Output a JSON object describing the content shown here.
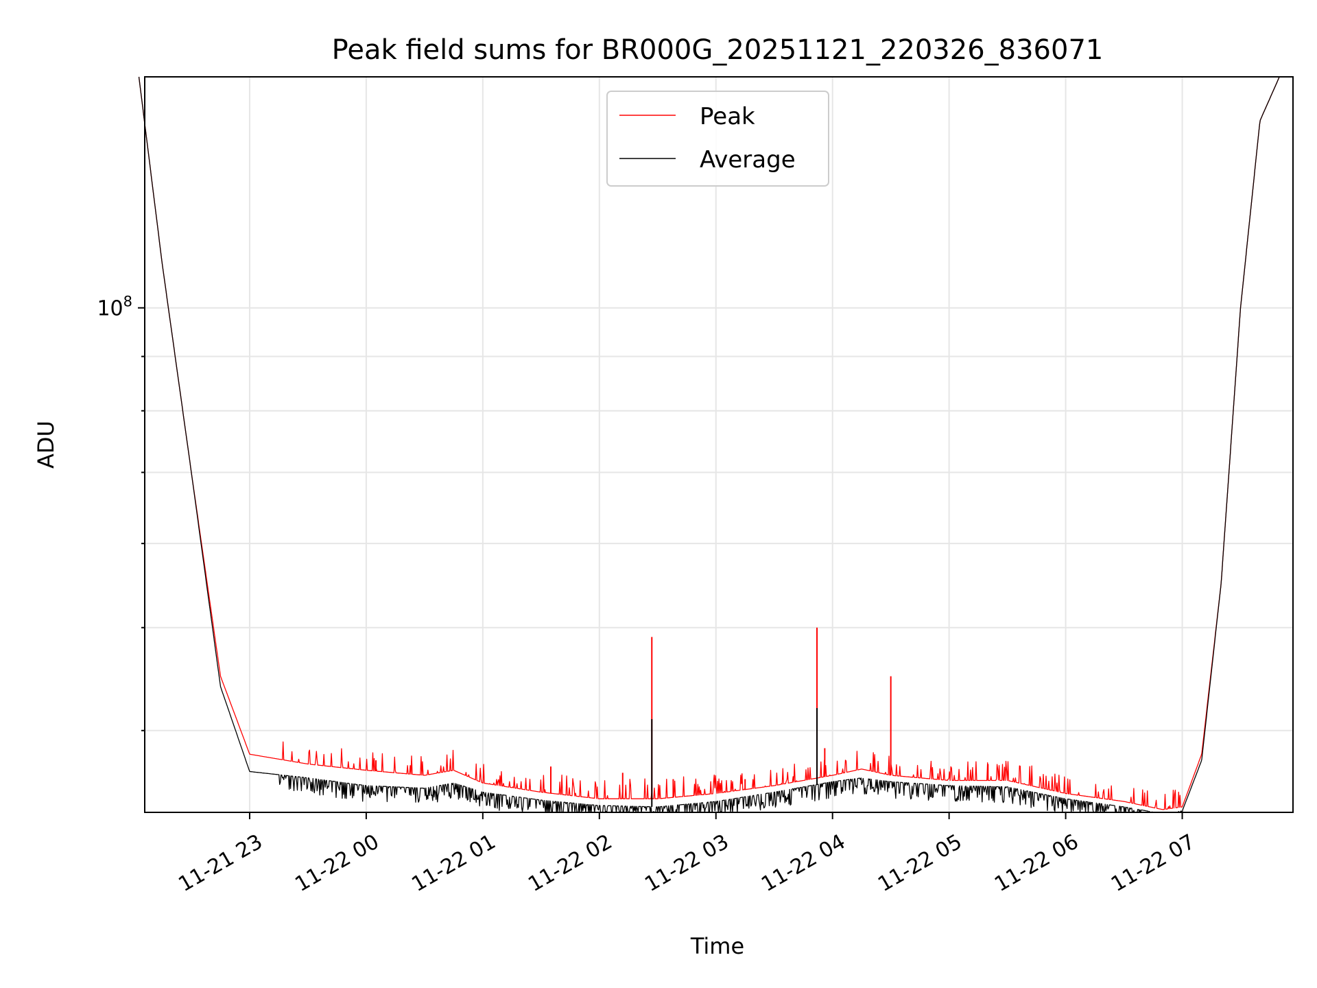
{
  "chart_data": {
    "type": "line",
    "title": "Peak field sums for BR000G_20251121_220326_836071",
    "xlabel": "Time",
    "ylabel": "ADU",
    "yscale": "log",
    "ylim": [
      33500000,
      165000000
    ],
    "xlim": [
      "2025-11-21 22:06",
      "2025-11-22 07:57"
    ],
    "grid": true,
    "legend_position": "upper center",
    "x_ticks": [
      "11-21 23",
      "11-22 00",
      "11-22 01",
      "11-22 02",
      "11-22 03",
      "11-22 04",
      "11-22 05",
      "11-22 06",
      "11-22 07"
    ],
    "y_tick_label": {
      "base": "10",
      "exponent": "8"
    },
    "series": [
      {
        "name": "Peak",
        "color": "#ff0000",
        "baseline_x": [
          "22:03",
          "22:15",
          "22:30",
          "22:45",
          "23:00",
          "23:30",
          "00:00",
          "00:30",
          "00:45",
          "01:00",
          "01:30",
          "02:00",
          "02:30",
          "03:00",
          "03:30",
          "04:00",
          "04:15",
          "04:30",
          "05:00",
          "05:30",
          "06:00",
          "06:30",
          "06:50",
          "07:00",
          "07:10",
          "07:20",
          "07:30",
          "07:40",
          "07:50",
          "07:57"
        ],
        "baseline_y": [
          165000000,
          110000000,
          70000000,
          45000000,
          38000000,
          37200000,
          36700000,
          36300000,
          36700000,
          35700000,
          35000000,
          34500000,
          34500000,
          34900000,
          35500000,
          36300000,
          36800000,
          36300000,
          35900000,
          35900000,
          34900000,
          34300000,
          33700000,
          33900000,
          38000000,
          55000000,
          100000000,
          150000000,
          165000000,
          165000000
        ],
        "spike_times": [
          "02:27",
          "03:52",
          "04:30",
          "03:56",
          "00:05",
          "01:35",
          "02:12",
          "02:38",
          "03:15",
          "05:20"
        ],
        "spike_values": [
          49000000,
          50000000,
          45000000,
          38500000,
          37500000,
          37000000,
          36500000,
          36000000,
          36000000,
          37200000
        ]
      },
      {
        "name": "Average",
        "color": "#000000",
        "baseline_x": [
          "22:03",
          "22:15",
          "22:30",
          "22:45",
          "23:00",
          "23:30",
          "00:00",
          "00:30",
          "00:45",
          "01:00",
          "01:30",
          "02:00",
          "02:30",
          "03:00",
          "03:30",
          "04:00",
          "04:15",
          "04:30",
          "05:00",
          "05:30",
          "06:00",
          "06:30",
          "06:50",
          "07:00",
          "07:10",
          "07:20",
          "07:30",
          "07:40",
          "07:50",
          "07:57"
        ],
        "baseline_y": [
          165000000,
          110000000,
          70000000,
          44000000,
          36600000,
          36100000,
          35500000,
          35300000,
          35700000,
          35000000,
          34400000,
          34000000,
          33900000,
          34300000,
          35000000,
          35800000,
          36100000,
          35800000,
          35500000,
          35400000,
          34500000,
          33900000,
          33400000,
          33600000,
          37500000,
          55000000,
          100000000,
          150000000,
          165000000,
          165000000
        ],
        "spike_times": [
          "02:27",
          "03:52"
        ],
        "spike_values": [
          41000000,
          42000000
        ]
      }
    ]
  }
}
